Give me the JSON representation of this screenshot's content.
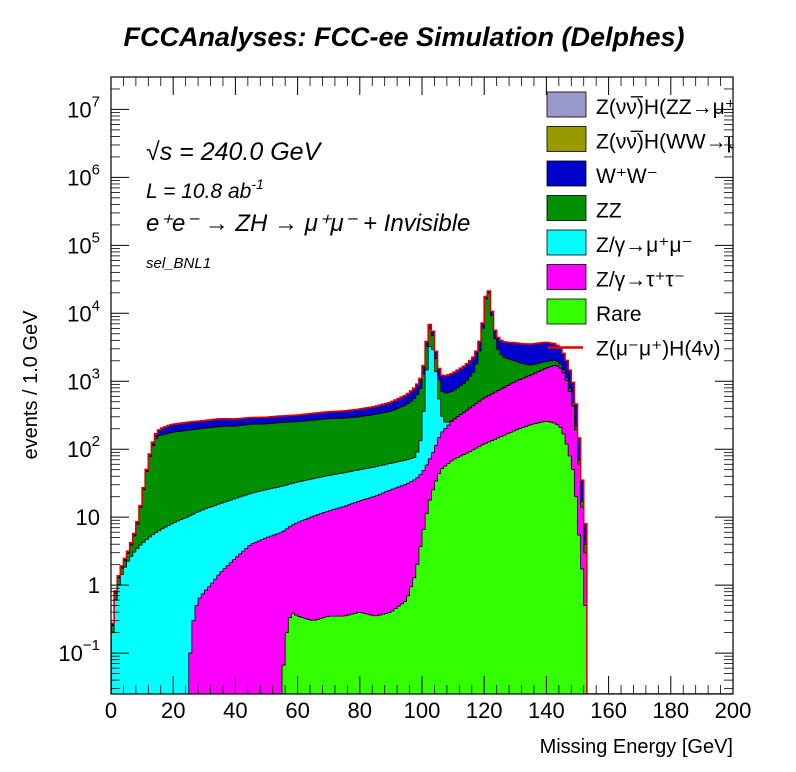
{
  "chart_data": {
    "type": "area",
    "stacked": true,
    "title": "FCCAnalyses: FCC-ee Simulation (Delphes)",
    "xlabel": "Missing Energy [GeV]",
    "ylabel": "events / 1.0 GeV",
    "xlim": [
      0,
      200
    ],
    "ylim": [
      0.025,
      30000000
    ],
    "yscale": "log",
    "x_ticks": [
      0,
      20,
      40,
      60,
      80,
      100,
      120,
      140,
      160,
      180,
      200
    ],
    "y_ticks": [
      {
        "value": 0.1,
        "base": "10",
        "exp": "−1"
      },
      {
        "value": 1,
        "base": "1",
        "exp": ""
      },
      {
        "value": 10,
        "base": "10",
        "exp": ""
      },
      {
        "value": 100,
        "base": "10",
        "exp": "2"
      },
      {
        "value": 1000,
        "base": "10",
        "exp": "3"
      },
      {
        "value": 10000,
        "base": "10",
        "exp": "4"
      },
      {
        "value": 100000,
        "base": "10",
        "exp": "5"
      },
      {
        "value": 1000000,
        "base": "10",
        "exp": "6"
      },
      {
        "value": 10000000,
        "base": "10",
        "exp": "7"
      }
    ],
    "annotations": {
      "sqrt_s": "√s = 240.0 GeV",
      "lumi": "L = 10.8 ab",
      "lumi_exp": "-1",
      "process": "e⁺e⁻ → ZH → μ⁺μ⁻ + Invisible",
      "selection": "sel_BNL1"
    },
    "legend_position": "top-right",
    "series": [
      {
        "name": "Rare",
        "color": "#33ff00",
        "points": [
          [
            0,
            0
          ],
          [
            15,
            0
          ],
          [
            20,
            0
          ],
          [
            25,
            0
          ],
          [
            30,
            0
          ],
          [
            35,
            0
          ],
          [
            40,
            0
          ],
          [
            45,
            0
          ],
          [
            50,
            0
          ],
          [
            55,
            0
          ],
          [
            58,
            0.4
          ],
          [
            60,
            0.35
          ],
          [
            65,
            0.3
          ],
          [
            70,
            0.35
          ],
          [
            75,
            0.35
          ],
          [
            80,
            0.4
          ],
          [
            85,
            0.35
          ],
          [
            90,
            0.4
          ],
          [
            95,
            0.6
          ],
          [
            98,
            1.5
          ],
          [
            100,
            5
          ],
          [
            102,
            15
          ],
          [
            104,
            30
          ],
          [
            106,
            50
          ],
          [
            110,
            70
          ],
          [
            115,
            90
          ],
          [
            120,
            120
          ],
          [
            125,
            150
          ],
          [
            130,
            190
          ],
          [
            135,
            230
          ],
          [
            140,
            260
          ],
          [
            143,
            240
          ],
          [
            145,
            200
          ],
          [
            147,
            100
          ],
          [
            149,
            40
          ],
          [
            150,
            10
          ],
          [
            151,
            3
          ],
          [
            152,
            1
          ],
          [
            153,
            0
          ]
        ]
      },
      {
        "name": "Z/γ→τ⁺τ⁻",
        "color": "#ff00ff",
        "points": [
          [
            0,
            0
          ],
          [
            25,
            0
          ],
          [
            28,
            0.6
          ],
          [
            30,
            0.8
          ],
          [
            32,
            1.0
          ],
          [
            35,
            1.5
          ],
          [
            40,
            2.5
          ],
          [
            45,
            4
          ],
          [
            50,
            5
          ],
          [
            55,
            6
          ],
          [
            60,
            8
          ],
          [
            65,
            10
          ],
          [
            70,
            12
          ],
          [
            75,
            14
          ],
          [
            80,
            17
          ],
          [
            85,
            20
          ],
          [
            90,
            25
          ],
          [
            95,
            30
          ],
          [
            98,
            35
          ],
          [
            100,
            40
          ],
          [
            102,
            50
          ],
          [
            104,
            70
          ],
          [
            106,
            120
          ],
          [
            110,
            200
          ],
          [
            115,
            300
          ],
          [
            120,
            450
          ],
          [
            125,
            600
          ],
          [
            130,
            800
          ],
          [
            135,
            1000
          ],
          [
            140,
            1300
          ],
          [
            143,
            1500
          ],
          [
            145,
            1300
          ],
          [
            147,
            800
          ],
          [
            149,
            300
          ],
          [
            150,
            100
          ],
          [
            151,
            30
          ],
          [
            152,
            5
          ],
          [
            153,
            0
          ]
        ]
      },
      {
        "name": "Z/γ→μ⁺μ⁻",
        "color": "#00ffff",
        "points": [
          [
            0,
            0
          ],
          [
            98,
            40
          ],
          [
            100,
            120
          ],
          [
            101,
            800
          ],
          [
            102,
            2500
          ],
          [
            103,
            4000
          ],
          [
            104,
            2000
          ],
          [
            105,
            800
          ],
          [
            106,
            200
          ],
          [
            108,
            30
          ],
          [
            110,
            0
          ]
        ]
      },
      {
        "name": "ZZ",
        "color": "#008f00",
        "points": [
          [
            0,
            0
          ],
          [
            5,
            0.5
          ],
          [
            8,
            3
          ],
          [
            10,
            15
          ],
          [
            12,
            60
          ],
          [
            14,
            130
          ],
          [
            15,
            150
          ],
          [
            20,
            170
          ],
          [
            25,
            180
          ],
          [
            30,
            190
          ],
          [
            35,
            200
          ],
          [
            40,
            200
          ],
          [
            45,
            210
          ],
          [
            50,
            210
          ],
          [
            55,
            220
          ],
          [
            60,
            220
          ],
          [
            65,
            230
          ],
          [
            70,
            240
          ],
          [
            75,
            240
          ],
          [
            80,
            250
          ],
          [
            85,
            270
          ],
          [
            90,
            300
          ],
          [
            95,
            380
          ],
          [
            98,
            500
          ],
          [
            100,
            700
          ],
          [
            101,
            1200
          ],
          [
            102,
            2500
          ],
          [
            103,
            3000
          ],
          [
            104,
            1000
          ],
          [
            105,
            600
          ],
          [
            106,
            400
          ],
          [
            110,
            450
          ],
          [
            114,
            600
          ],
          [
            117,
            1000
          ],
          [
            119,
            3000
          ],
          [
            120,
            10000
          ],
          [
            121,
            25000
          ],
          [
            122,
            15000
          ],
          [
            123,
            5000
          ],
          [
            124,
            2500
          ],
          [
            126,
            1500
          ],
          [
            130,
            1000
          ],
          [
            135,
            500
          ],
          [
            140,
            400
          ],
          [
            143,
            300
          ],
          [
            145,
            200
          ],
          [
            147,
            100
          ],
          [
            149,
            40
          ],
          [
            150,
            15
          ],
          [
            151,
            5
          ],
          [
            152,
            2
          ],
          [
            153,
            0
          ]
        ]
      },
      {
        "name": "W⁺W⁻",
        "color": "#0000cc",
        "points": [
          [
            0,
            0
          ],
          [
            5,
            0.2
          ],
          [
            10,
            1
          ],
          [
            12,
            5
          ],
          [
            14,
            20
          ],
          [
            16,
            40
          ],
          [
            18,
            50
          ],
          [
            20,
            55
          ],
          [
            25,
            60
          ],
          [
            30,
            60
          ],
          [
            35,
            65
          ],
          [
            40,
            60
          ],
          [
            45,
            60
          ],
          [
            50,
            60
          ],
          [
            55,
            60
          ],
          [
            60,
            65
          ],
          [
            65,
            70
          ],
          [
            70,
            75
          ],
          [
            75,
            80
          ],
          [
            80,
            90
          ],
          [
            85,
            100
          ],
          [
            90,
            130
          ],
          [
            95,
            180
          ],
          [
            98,
            250
          ],
          [
            100,
            350
          ],
          [
            101,
            500
          ],
          [
            102,
            800
          ],
          [
            103,
            900
          ],
          [
            104,
            700
          ],
          [
            105,
            500
          ],
          [
            106,
            500
          ],
          [
            110,
            600
          ],
          [
            115,
            800
          ],
          [
            120,
            1200
          ],
          [
            125,
            1500
          ],
          [
            130,
            1700
          ],
          [
            135,
            1800
          ],
          [
            140,
            1800
          ],
          [
            143,
            1500
          ],
          [
            145,
            1200
          ],
          [
            147,
            800
          ],
          [
            149,
            400
          ],
          [
            150,
            150
          ],
          [
            151,
            40
          ],
          [
            152,
            8
          ],
          [
            153,
            0
          ]
        ]
      },
      {
        "name": "Z(νν̅)H(WW→μ⁺νμ⁻ν̅)",
        "color": "#999900",
        "points": [
          [
            0,
            0
          ],
          [
            137,
            0
          ],
          [
            138,
            0.02
          ],
          [
            140,
            0.05
          ],
          [
            142,
            0.03
          ],
          [
            143,
            0.04
          ],
          [
            144,
            0.02
          ],
          [
            145,
            0
          ]
        ]
      },
      {
        "name": "Z(νν̅)H(ZZ→μ⁺μ⁻νν̅)",
        "color": "#9999cc",
        "points": [
          [
            0,
            0
          ],
          [
            120,
            0
          ],
          [
            121,
            0.01
          ],
          [
            123,
            0.05
          ],
          [
            125,
            0.12
          ],
          [
            128,
            0.3
          ],
          [
            131,
            0.6
          ],
          [
            134,
            1.0
          ],
          [
            137,
            1.3
          ],
          [
            140,
            1.5
          ],
          [
            142,
            1.4
          ],
          [
            144,
            1.1
          ],
          [
            146,
            0.7
          ],
          [
            148,
            0.35
          ],
          [
            150,
            0.1
          ],
          [
            151,
            0.03
          ],
          [
            152,
            0
          ]
        ]
      }
    ],
    "signal_line": {
      "name": "Z(μ⁻μ⁺)H(4ν)",
      "color": "#dd0000"
    },
    "legend_order": [
      "Z(νν̅)H(ZZ→μ⁺μ⁻νν̅)",
      "Z(νν̅)H(WW→μ⁺νμ⁻ν̅)",
      "W⁺W⁻",
      "ZZ",
      "Z/γ→μ⁺μ⁻",
      "Z/γ→τ⁺τ⁻",
      "Rare",
      "Z(μ⁻μ⁺)H(4ν)"
    ]
  }
}
